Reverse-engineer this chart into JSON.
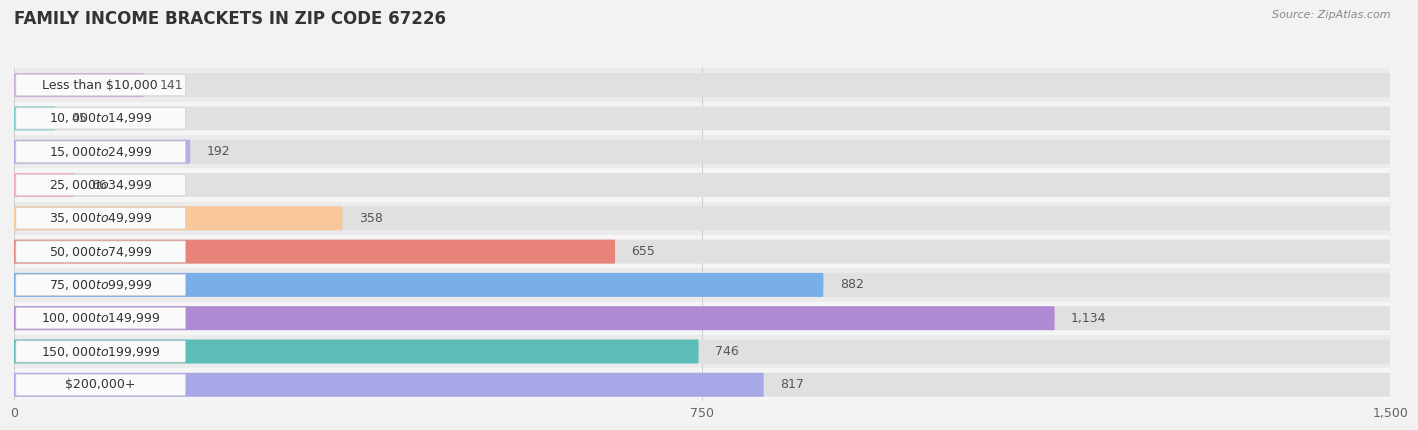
{
  "title": "FAMILY INCOME BRACKETS IN ZIP CODE 67226",
  "source": "Source: ZipAtlas.com",
  "categories": [
    "Less than $10,000",
    "$10,000 to $14,999",
    "$15,000 to $24,999",
    "$25,000 to $34,999",
    "$35,000 to $49,999",
    "$50,000 to $74,999",
    "$75,000 to $99,999",
    "$100,000 to $149,999",
    "$150,000 to $199,999",
    "$200,000+"
  ],
  "values": [
    141,
    45,
    192,
    66,
    358,
    655,
    882,
    1134,
    746,
    817
  ],
  "bar_colors": [
    "#c9aed6",
    "#7ececa",
    "#b3aee8",
    "#f4a8bb",
    "#f9c89a",
    "#e8837a",
    "#7aaee8",
    "#b08ad4",
    "#5bbcb8",
    "#a8a8e8"
  ],
  "xlim": [
    0,
    1500
  ],
  "xticks": [
    0,
    750,
    1500
  ],
  "background_color": "#f2f2f2",
  "row_bg_even": "#ebebeb",
  "row_bg_odd": "#f5f5f5",
  "bar_bg_color": "#e0e0e0",
  "label_bg_color": "#fafafa",
  "title_fontsize": 12,
  "label_fontsize": 9,
  "value_fontsize": 9,
  "tick_fontsize": 9
}
